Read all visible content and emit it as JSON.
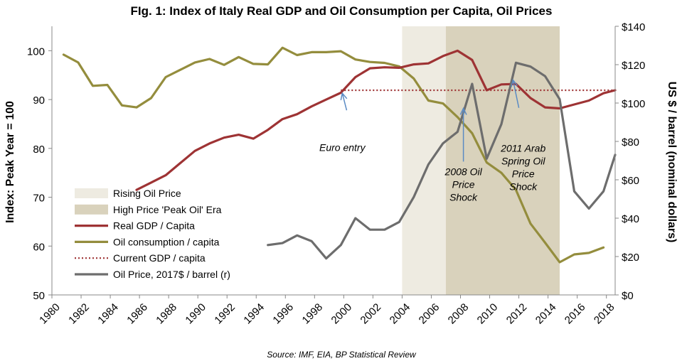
{
  "chart_data": {
    "type": "line",
    "title": "FIg. 1: Index of Italy Real GDP and Oil Consumption per Capita, Oil Prices",
    "ylabel": "Index: Peak Year = 100",
    "y2label": "US $ / barrel (nominal dollars)",
    "source": "Source: IMF, EIA, BP Statistical Review",
    "ylim": [
      50,
      105
    ],
    "y2lim": [
      0,
      140
    ],
    "xlim": [
      1980,
      2018.6
    ],
    "x_ticks": [
      "1980",
      "1982",
      "1984",
      "1986",
      "1988",
      "1990",
      "1992",
      "1994",
      "1996",
      "1998",
      "2000",
      "2002",
      "2004",
      "2006",
      "2008",
      "2010",
      "2012",
      "2014",
      "2016",
      "2018"
    ],
    "y_ticks": [
      "50",
      "60",
      "70",
      "80",
      "90",
      "100"
    ],
    "y2_ticks": [
      "$0",
      "$20",
      "$40",
      "$60",
      "$80",
      "$100",
      "$120",
      "$140"
    ],
    "grid": false,
    "legend_position": "bottom-left",
    "shaded_regions": [
      {
        "name": "Rising Oil Price",
        "from": 2004,
        "to": 2007,
        "color": "#eeebe1"
      },
      {
        "name": "High Price 'Peak Oil' Era",
        "from": 2007,
        "to": 2014.8,
        "color": "#d9d2bc"
      }
    ],
    "series": [
      {
        "name": "Real GDP / Capita",
        "axis": "left",
        "color": "#9e3334",
        "style": "solid",
        "x": [
          1985.8,
          1986.8,
          1987.8,
          1988.8,
          1989.8,
          1990.8,
          1991.8,
          1992.8,
          1993.8,
          1994.8,
          1995.8,
          1996.8,
          1997.8,
          1998.8,
          1999.8,
          2000.8,
          2001.8,
          2002.8,
          2003.8,
          2004.8,
          2005.8,
          2006.8,
          2007.8,
          2008.8,
          2009.8,
          2010.8,
          2011.8,
          2012.8,
          2013.8,
          2014.8,
          2015.8,
          2016.8,
          2017.8,
          2018.6
        ],
        "values": [
          71.5,
          73,
          74.5,
          77,
          79.5,
          81,
          82.2,
          82.8,
          82,
          83.8,
          86,
          87,
          88.6,
          90,
          91.4,
          94.6,
          96.4,
          96.6,
          96.5,
          97.2,
          97.4,
          98.9,
          100,
          98.1,
          91.9,
          93.1,
          93.2,
          90.3,
          88.4,
          88.2,
          89,
          89.8,
          91.3,
          91.9
        ]
      },
      {
        "name": "Oil consumption / capita",
        "axis": "left",
        "color": "#948d3d",
        "style": "solid",
        "x": [
          1980.8,
          1981.8,
          1982.8,
          1983.8,
          1984.8,
          1985.8,
          1986.8,
          1987.8,
          1988.8,
          1989.8,
          1990.8,
          1991.8,
          1992.8,
          1993.8,
          1994.8,
          1995.8,
          1996.8,
          1997.8,
          1998.8,
          1999.8,
          2000.8,
          2001.8,
          2002.8,
          2003.8,
          2004.8,
          2005.8,
          2006.8,
          2007.8,
          2008.8,
          2009.8,
          2010.8,
          2011.8,
          2012.8,
          2013.8,
          2014.8,
          2015.8,
          2016.8,
          2017.8
        ],
        "values": [
          99.2,
          97.6,
          92.8,
          93,
          88.8,
          88.4,
          90.3,
          94.6,
          96.1,
          97.6,
          98.3,
          97.1,
          98.7,
          97.3,
          97.2,
          100.6,
          99.1,
          99.7,
          99.7,
          99.9,
          98.2,
          97.7,
          97.5,
          96.8,
          94.3,
          89.8,
          89.2,
          86.4,
          83.1,
          77.1,
          75,
          71.5,
          64.6,
          60.7,
          56.7,
          58.3,
          58.6,
          59.7
        ]
      },
      {
        "name": "Current GDP / capita",
        "axis": "left",
        "color": "#9e3334",
        "style": "dotted",
        "x": [
          1999.8,
          2018.6
        ],
        "values": [
          91.9,
          91.9
        ]
      },
      {
        "name": "Oil Price, 2017$ / barrel (r)",
        "axis": "right",
        "color": "#6d6d6d",
        "style": "solid",
        "x": [
          1994.8,
          1995.8,
          1996.8,
          1997.8,
          1998.8,
          1999.8,
          2000.8,
          2001.8,
          2002.8,
          2003.8,
          2004.8,
          2005.8,
          2006.8,
          2007.8,
          2008.8,
          2009.8,
          2010.8,
          2011.8,
          2012.8,
          2013.8,
          2014.8,
          2015.8,
          2016.8,
          2017.8,
          2018.6
        ],
        "values": [
          26,
          27,
          31,
          28,
          19,
          26,
          40,
          34,
          34,
          38,
          51,
          68,
          79,
          85,
          110,
          71,
          89,
          121,
          119,
          114,
          102,
          54,
          45,
          54,
          73
        ]
      }
    ],
    "annotations": [
      {
        "id": "euro",
        "lines": [
          "Euro entry"
        ],
        "x": 1999.9,
        "y": 79.5,
        "arrow_from": [
          2000.2,
          87.8
        ],
        "arrow_to": [
          1999.9,
          91.3
        ]
      },
      {
        "id": "shock2008",
        "lines": [
          "2008 Oil",
          "Price",
          "Shock"
        ],
        "x": 2008.2,
        "y": 74.5,
        "arrow_from": [
          2008.2,
          77.3
        ],
        "arrow_to": [
          2008.2,
          88.2
        ]
      },
      {
        "id": "arab2011",
        "lines": [
          "2011 Arab",
          "Spring Oil",
          "Price",
          "Shock"
        ],
        "x": 2012.3,
        "y": 79.3,
        "arrow_from": [
          2012,
          88.3
        ],
        "arrow_to": [
          2011.6,
          94
        ]
      }
    ]
  }
}
